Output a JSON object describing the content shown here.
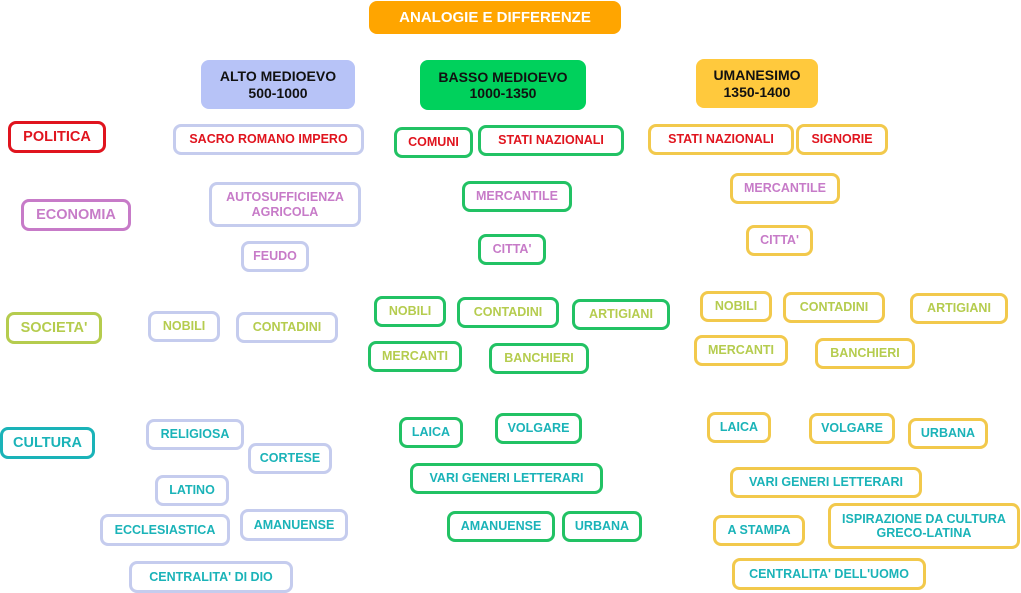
{
  "title": "ANALOGIE E DIFFERENZE",
  "columns": {
    "alto": {
      "name": "ALTO MEDIOEVO",
      "period": "500-1000"
    },
    "basso": {
      "name": "BASSO MEDIOEVO",
      "period": "1000-1350"
    },
    "umanesimo": {
      "name": "UMANESIMO",
      "period": "1350-1400"
    }
  },
  "rows": {
    "politica": "POLITICA",
    "economia": "ECONOMIA",
    "societa": "SOCIETA'",
    "cultura": "CULTURA"
  },
  "alto": {
    "politica": [
      "SACRO ROMANO IMPERO"
    ],
    "economia": [
      "AUTOSUFFICIENZA AGRICOLA",
      "FEUDO"
    ],
    "societa": [
      "NOBILI",
      "CONTADINI"
    ],
    "cultura": [
      "RELIGIOSA",
      "CORTESE",
      "LATINO",
      "ECCLESIASTICA",
      "AMANUENSE",
      "CENTRALITA' DI DIO"
    ]
  },
  "basso": {
    "politica": [
      "COMUNI",
      "STATI NAZIONALI"
    ],
    "economia": [
      "MERCANTILE",
      "CITTA'"
    ],
    "societa": [
      "NOBILI",
      "CONTADINI",
      "ARTIGIANI",
      "MERCANTI",
      "BANCHIERI"
    ],
    "cultura": [
      "LAICA",
      "VOLGARE",
      "VARI GENERI LETTERARI",
      "AMANUENSE",
      "URBANA"
    ]
  },
  "umanesimo": {
    "politica": [
      "STATI NAZIONALI",
      "SIGNORIE"
    ],
    "economia": [
      "MERCANTILE",
      "CITTA'"
    ],
    "societa": [
      "NOBILI",
      "CONTADINI",
      "ARTIGIANI",
      "MERCANTI",
      "BANCHIERI"
    ],
    "cultura": [
      "LAICA",
      "VOLGARE",
      "URBANA",
      "VARI GENERI LETTERARI",
      "A STAMPA",
      "ISPIRAZIONE DA CULTURA GRECO-LATINA",
      "CENTRALITA' DELL'UOMO"
    ]
  },
  "colors": {
    "title_bg": "#FFA500",
    "alto_header": "#B7C3F7",
    "basso_header": "#00D15C",
    "umanesimo_header": "#FFC93D",
    "politica": "#E0141E",
    "economia": "#C77BC8",
    "societa": "#B5CC4E",
    "cultura": "#1AB3B8"
  }
}
